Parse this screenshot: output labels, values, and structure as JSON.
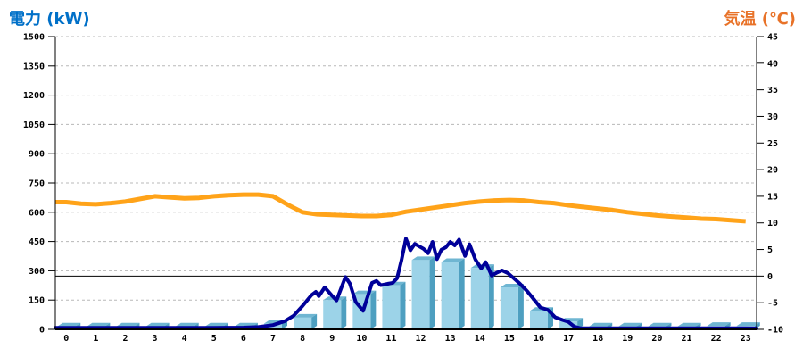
{
  "header": {
    "left_title": "電力 (kW)",
    "right_title": "気温 (℃)"
  },
  "colors": {
    "left_title": "#0070C8",
    "right_title": "#E87228",
    "bar_front": "#9CD3E8",
    "bar_side": "#4E9FC0",
    "bar_top": "#6FB6D2",
    "power_line": "#000099",
    "temp_line": "#FFA319",
    "gridline": "#B8B8B8",
    "axis": "#000000",
    "zero_line": "#000000",
    "tick_text": "#000000"
  },
  "chart_data": {
    "type": "combo bar + line, dual y-axis",
    "title_left": "電力 (kW)",
    "title_right": "気温 (℃)",
    "x_categories": [
      "0",
      "1",
      "2",
      "3",
      "4",
      "5",
      "6",
      "7",
      "8",
      "9",
      "10",
      "11",
      "12",
      "13",
      "14",
      "15",
      "16",
      "17",
      "18",
      "19",
      "20",
      "21",
      "22",
      "23"
    ],
    "left_axis": {
      "label": "電力 (kW)",
      "min": 0,
      "max": 1500,
      "step": 150,
      "ticks": [
        0,
        150,
        300,
        450,
        600,
        750,
        900,
        1050,
        1200,
        1350,
        1500
      ],
      "grid": "dashed"
    },
    "right_axis": {
      "label": "気温 (℃)",
      "min": -10,
      "max": 45,
      "step": 5,
      "ticks": [
        -10,
        -5,
        0,
        5,
        10,
        15,
        20,
        25,
        30,
        35,
        40,
        45
      ],
      "zero_line": "solid"
    },
    "bars": {
      "name": "power-bars",
      "unit": "kW",
      "style": "3d-light-blue",
      "values": [
        15,
        15,
        15,
        15,
        15,
        15,
        15,
        30,
        60,
        150,
        180,
        225,
        355,
        345,
        315,
        215,
        95,
        40,
        15,
        15,
        15,
        15,
        18,
        18
      ]
    },
    "power_line": {
      "name": "power-line",
      "unit": "kW",
      "axis": "left",
      "points": [
        [
          -0.37,
          8
        ],
        [
          1,
          8
        ],
        [
          2,
          8
        ],
        [
          3,
          8
        ],
        [
          4,
          8
        ],
        [
          5,
          8
        ],
        [
          6,
          9
        ],
        [
          6.5,
          12
        ],
        [
          7,
          22
        ],
        [
          7.4,
          42
        ],
        [
          7.7,
          70
        ],
        [
          8.0,
          120
        ],
        [
          8.3,
          175
        ],
        [
          8.45,
          192
        ],
        [
          8.55,
          170
        ],
        [
          8.75,
          215
        ],
        [
          9.0,
          172
        ],
        [
          9.15,
          148
        ],
        [
          9.45,
          268
        ],
        [
          9.6,
          235
        ],
        [
          9.8,
          140
        ],
        [
          10.05,
          95
        ],
        [
          10.35,
          238
        ],
        [
          10.5,
          248
        ],
        [
          10.65,
          226
        ],
        [
          10.85,
          232
        ],
        [
          11.05,
          238
        ],
        [
          11.2,
          262
        ],
        [
          11.35,
          355
        ],
        [
          11.5,
          465
        ],
        [
          11.65,
          405
        ],
        [
          11.8,
          438
        ],
        [
          11.95,
          425
        ],
        [
          12.1,
          412
        ],
        [
          12.25,
          390
        ],
        [
          12.4,
          448
        ],
        [
          12.55,
          360
        ],
        [
          12.7,
          408
        ],
        [
          12.85,
          420
        ],
        [
          13.0,
          448
        ],
        [
          13.15,
          430
        ],
        [
          13.3,
          460
        ],
        [
          13.5,
          376
        ],
        [
          13.65,
          436
        ],
        [
          13.85,
          358
        ],
        [
          14.05,
          312
        ],
        [
          14.2,
          344
        ],
        [
          14.4,
          276
        ],
        [
          14.6,
          292
        ],
        [
          14.75,
          302
        ],
        [
          14.95,
          288
        ],
        [
          15.15,
          262
        ],
        [
          15.35,
          235
        ],
        [
          15.6,
          196
        ],
        [
          15.85,
          150
        ],
        [
          16.05,
          112
        ],
        [
          16.3,
          100
        ],
        [
          16.55,
          62
        ],
        [
          16.8,
          48
        ],
        [
          17.0,
          38
        ],
        [
          17.2,
          14
        ],
        [
          17.4,
          6
        ],
        [
          18,
          6
        ],
        [
          19,
          6
        ],
        [
          20,
          6
        ],
        [
          21,
          6
        ],
        [
          22,
          6
        ],
        [
          23,
          6
        ],
        [
          23.37,
          5
        ]
      ]
    },
    "temp_line": {
      "name": "temperature-line",
      "unit": "°C",
      "axis": "right",
      "points": [
        [
          -0.37,
          13.9
        ],
        [
          0,
          13.9
        ],
        [
          0.5,
          13.6
        ],
        [
          1,
          13.5
        ],
        [
          1.5,
          13.7
        ],
        [
          2,
          14.0
        ],
        [
          2.5,
          14.5
        ],
        [
          3,
          15.0
        ],
        [
          3.5,
          14.8
        ],
        [
          4,
          14.6
        ],
        [
          4.5,
          14.7
        ],
        [
          5,
          15.0
        ],
        [
          5.5,
          15.2
        ],
        [
          6,
          15.3
        ],
        [
          6.5,
          15.3
        ],
        [
          7,
          15.0
        ],
        [
          7.5,
          13.4
        ],
        [
          8,
          12.0
        ],
        [
          8.5,
          11.6
        ],
        [
          9,
          11.5
        ],
        [
          9.5,
          11.4
        ],
        [
          10,
          11.3
        ],
        [
          10.5,
          11.3
        ],
        [
          11,
          11.5
        ],
        [
          11.5,
          12.1
        ],
        [
          12,
          12.5
        ],
        [
          12.5,
          12.9
        ],
        [
          13,
          13.3
        ],
        [
          13.5,
          13.7
        ],
        [
          14,
          14.0
        ],
        [
          14.5,
          14.2
        ],
        [
          15,
          14.3
        ],
        [
          15.5,
          14.2
        ],
        [
          16,
          13.9
        ],
        [
          16.5,
          13.7
        ],
        [
          17,
          13.3
        ],
        [
          17.5,
          13.0
        ],
        [
          18,
          12.7
        ],
        [
          18.5,
          12.4
        ],
        [
          19,
          12.0
        ],
        [
          19.5,
          11.7
        ],
        [
          20,
          11.4
        ],
        [
          20.5,
          11.2
        ],
        [
          21,
          11.0
        ],
        [
          21.5,
          10.8
        ],
        [
          22,
          10.7
        ],
        [
          22.5,
          10.5
        ],
        [
          23,
          10.3
        ]
      ]
    },
    "legend": "none"
  }
}
